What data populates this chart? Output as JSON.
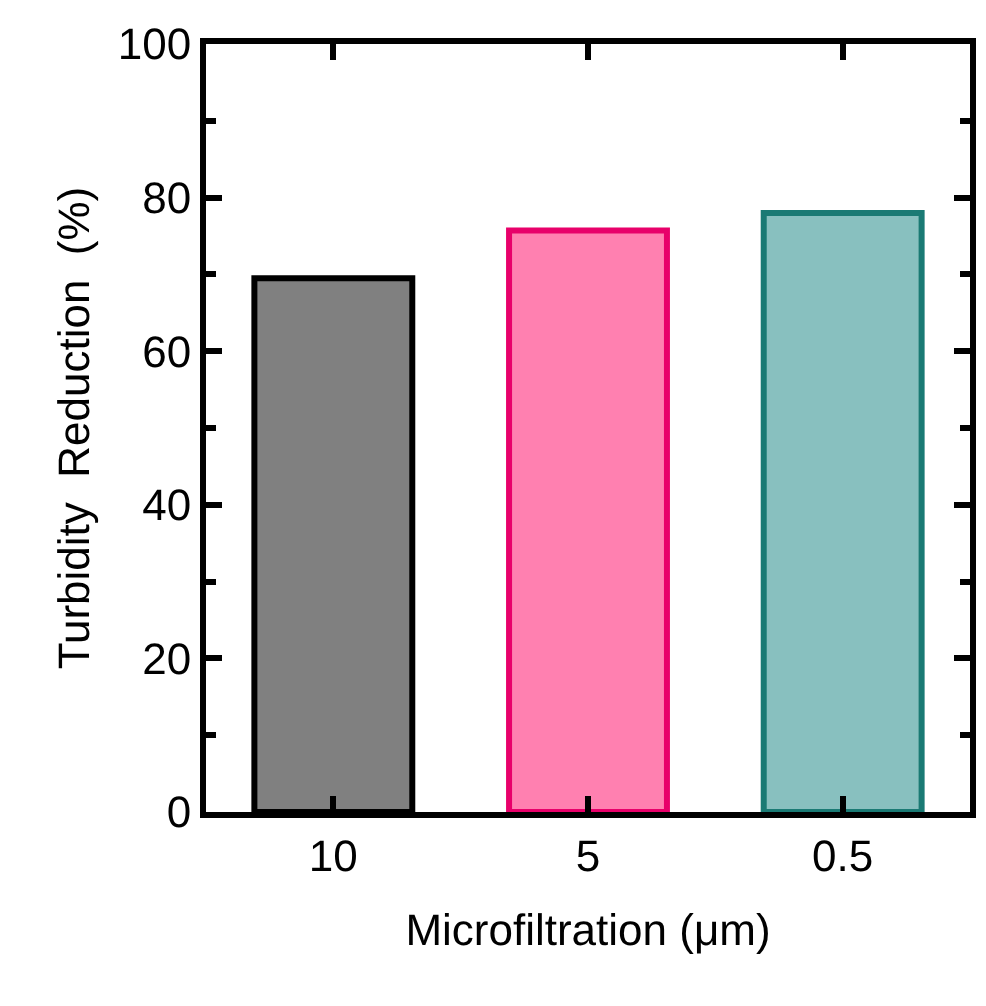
{
  "chart_data": {
    "type": "bar",
    "xlabel": "Microfiltration (μm)",
    "ylabel": "Turbidity  Reduction  (%)",
    "categories": [
      "10",
      "5",
      "0.5"
    ],
    "values": [
      69.5,
      75.7,
      78.0
    ],
    "colors": [
      "#808080",
      "#ff80b0",
      "#88c0bf"
    ],
    "ylim": [
      0,
      100
    ],
    "yticks": [
      0,
      20,
      40,
      60,
      80,
      100
    ]
  }
}
